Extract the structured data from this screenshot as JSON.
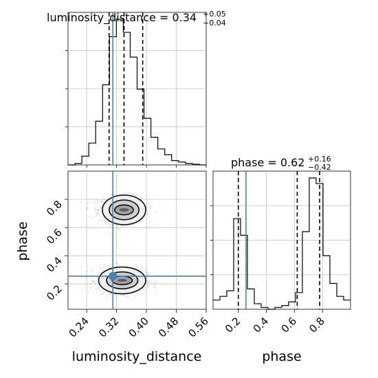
{
  "chart_data": {
    "type": "corner",
    "parameters": [
      "luminosity_distance",
      "phase"
    ],
    "colors": {
      "truth": "#4682b4",
      "hist": "#000000",
      "grid": "#c0c0c0",
      "points": "#aaaaaa"
    },
    "titles": {
      "luminosity_distance": {
        "main": "luminosity_distance = 0.34",
        "plus": "+0.05",
        "minus": "−0.04"
      },
      "phase": {
        "main": "phase = 0.62",
        "plus": "+0.16",
        "minus": "−0.42"
      }
    },
    "axis_labels": {
      "x1": "luminosity_distance",
      "x2": "phase",
      "y2": "phase"
    },
    "ranges": {
      "luminosity_distance": [
        0.19,
        0.56
      ],
      "phase": [
        0.02,
        1.0
      ]
    },
    "ticks": {
      "luminosity_distance": [
        {
          "v": 0.24,
          "label": "0.24"
        },
        {
          "v": 0.32,
          "label": "0.32"
        },
        {
          "v": 0.4,
          "label": "0.40"
        },
        {
          "v": 0.48,
          "label": "0.48"
        },
        {
          "v": 0.56,
          "label": "0.56"
        }
      ],
      "phase": [
        {
          "v": 0.2,
          "label": "0.2"
        },
        {
          "v": 0.4,
          "label": "0.4"
        },
        {
          "v": 0.6,
          "label": "0.6"
        },
        {
          "v": 0.8,
          "label": "0.8"
        }
      ]
    },
    "truth": {
      "luminosity_distance": 0.31,
      "phase": 0.255
    },
    "quantiles": {
      "luminosity_distance": [
        0.3,
        0.34,
        0.39
      ],
      "phase": [
        0.2,
        0.62,
        0.78
      ]
    },
    "hist_luminosity_distance": {
      "edges": [
        0.19,
        0.2085,
        0.227,
        0.2455,
        0.264,
        0.2825,
        0.301,
        0.3195,
        0.338,
        0.3565,
        0.375,
        0.3935,
        0.412,
        0.4305,
        0.449,
        0.4675,
        0.486,
        0.5045,
        0.523,
        0.5415,
        0.56
      ],
      "counts": [
        0,
        0.01,
        0.06,
        0.15,
        0.3,
        0.55,
        0.88,
        1.0,
        0.91,
        0.74,
        0.52,
        0.32,
        0.19,
        0.11,
        0.07,
        0.03,
        0.02,
        0.01,
        0.005,
        0
      ]
    },
    "hist_phase": {
      "edges": [
        0.02,
        0.069,
        0.118,
        0.167,
        0.216,
        0.265,
        0.314,
        0.363,
        0.412,
        0.461,
        0.51,
        0.559,
        0.608,
        0.657,
        0.706,
        0.755,
        0.804,
        0.853,
        0.902,
        0.951,
        1.0
      ],
      "counts": [
        0.05,
        0.07,
        0.1,
        0.49,
        0.4,
        0.11,
        0.03,
        0.01,
        0.0,
        0.01,
        0.02,
        0.04,
        0.09,
        0.42,
        0.71,
        0.68,
        0.29,
        0.14,
        0.07,
        0.05
      ]
    },
    "modes": [
      {
        "x": 0.335,
        "y": 0.725,
        "sx": 0.032,
        "sy": 0.05,
        "n": 900
      },
      {
        "x": 0.335,
        "y": 0.225,
        "sx": 0.032,
        "sy": 0.045,
        "n": 950
      }
    ],
    "contours": [
      {
        "x": 0.34,
        "y": 0.725,
        "rx": [
          0.013,
          0.025,
          0.04,
          0.058
        ],
        "ry": [
          0.012,
          0.035,
          0.07,
          0.105
        ]
      },
      {
        "x": 0.335,
        "y": 0.225,
        "rx": [
          0.013,
          0.027,
          0.042,
          0.063
        ],
        "ry": [
          0.01,
          0.03,
          0.06,
          0.095
        ]
      }
    ]
  }
}
